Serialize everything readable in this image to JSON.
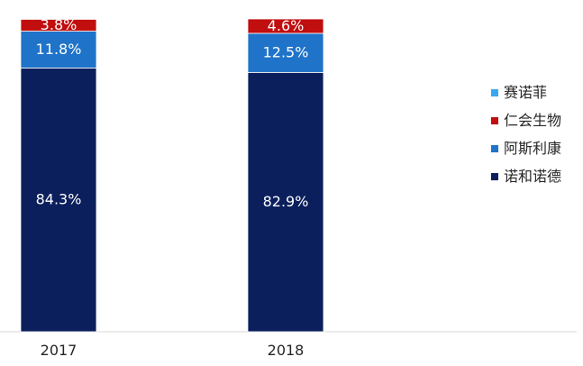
{
  "chart_data": {
    "type": "bar",
    "stacked": true,
    "normalized_percent": true,
    "categories": [
      "2017",
      "2018"
    ],
    "series": [
      {
        "name": "诺和诺德",
        "values": [
          84.3,
          82.9
        ],
        "labels": [
          "84.3%",
          "82.9%"
        ],
        "color": "#0b1f5c"
      },
      {
        "name": "阿斯利康",
        "values": [
          11.8,
          12.5
        ],
        "labels": [
          "11.8%",
          "12.5%"
        ],
        "color": "#1f73c9"
      },
      {
        "name": "仁会生物",
        "values": [
          3.8,
          4.6
        ],
        "labels": [
          "3.8%",
          "4.6%"
        ],
        "color": "#c10e0e"
      },
      {
        "name": "赛诺菲",
        "values": [
          0.1,
          0.0
        ],
        "labels": [
          "",
          ""
        ],
        "color": "#39a7ef"
      }
    ],
    "legend": {
      "position": "right",
      "order": [
        "赛诺菲",
        "仁会生物",
        "阿斯利康",
        "诺和诺德"
      ]
    },
    "grid": false,
    "ylim": [
      0,
      100
    ],
    "axis_color": "#d9d9d9",
    "label_color_light": "#ffffff",
    "tick_label_color": "#262626"
  }
}
